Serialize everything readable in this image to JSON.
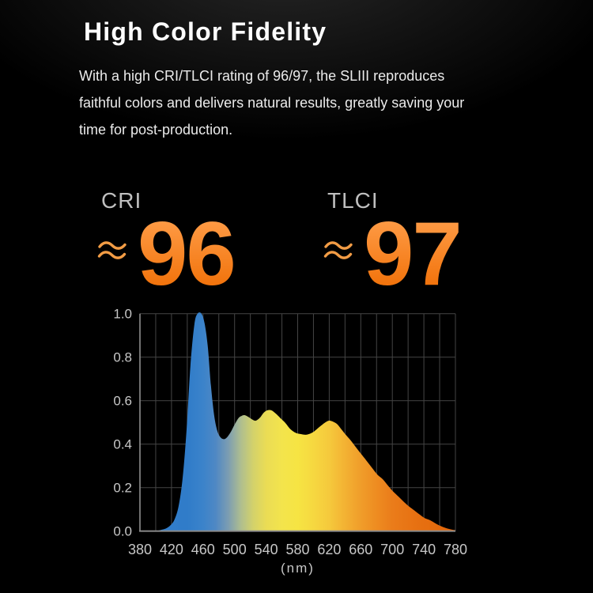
{
  "header": {
    "title": "High Color Fidelity",
    "description_lines": [
      "With a high CRI/TLCI rating of 96/97, the SLIII reproduces",
      "faithful colors and delivers natural results, greatly saving your",
      "time for post-production."
    ]
  },
  "ratings": [
    {
      "label": "CRI",
      "approx_symbol": "≈",
      "value": "96"
    },
    {
      "label": "TLCI",
      "approx_symbol": "≈",
      "value": "97"
    }
  ],
  "colors": {
    "accent_orange_top": "#FF9D48",
    "accent_orange_bottom": "#F06F06",
    "wave_orange": "#F29C45",
    "title_white": "#FFFFFF",
    "body_text": "#EBEBEB",
    "rating_label_gray": "#BFBFBF",
    "grid": "#454545",
    "axis": "#8E8E8E",
    "tick_text": "#C7C7C7",
    "background": "#000000"
  },
  "chart_data": {
    "type": "area",
    "title": "",
    "xlabel": "(nm)",
    "ylabel": "",
    "xlim": [
      380,
      780
    ],
    "ylim": [
      0,
      1
    ],
    "grid": true,
    "legend": false,
    "x_ticks": [
      380,
      420,
      460,
      500,
      540,
      580,
      620,
      660,
      700,
      740,
      780
    ],
    "y_ticks": [
      "1.0",
      "0.8",
      "0.6",
      "0.4",
      "0.2",
      "0.0"
    ],
    "x_gridlines": [
      380,
      400,
      420,
      440,
      460,
      480,
      500,
      520,
      540,
      560,
      580,
      600,
      620,
      640,
      660,
      680,
      700,
      720,
      740,
      760,
      780
    ],
    "y_gridlines": [
      0,
      0.2,
      0.4,
      0.6,
      0.8,
      1.0
    ],
    "points": [
      [
        380,
        0
      ],
      [
        398,
        0
      ],
      [
        406,
        0.005
      ],
      [
        413,
        0.012
      ],
      [
        419,
        0.028
      ],
      [
        424,
        0.055
      ],
      [
        429,
        0.115
      ],
      [
        434,
        0.24
      ],
      [
        439,
        0.46
      ],
      [
        444,
        0.76
      ],
      [
        449,
        0.95
      ],
      [
        453,
        1.0
      ],
      [
        458,
        1.0
      ],
      [
        462,
        0.955
      ],
      [
        466,
        0.85
      ],
      [
        470,
        0.67
      ],
      [
        474,
        0.535
      ],
      [
        478,
        0.462
      ],
      [
        482,
        0.432
      ],
      [
        486,
        0.423
      ],
      [
        490,
        0.43
      ],
      [
        495,
        0.455
      ],
      [
        500,
        0.49
      ],
      [
        505,
        0.52
      ],
      [
        509,
        0.53
      ],
      [
        513,
        0.533
      ],
      [
        518,
        0.524
      ],
      [
        523,
        0.512
      ],
      [
        527,
        0.508
      ],
      [
        532,
        0.521
      ],
      [
        537,
        0.545
      ],
      [
        542,
        0.556
      ],
      [
        547,
        0.555
      ],
      [
        552,
        0.541
      ],
      [
        558,
        0.52
      ],
      [
        564,
        0.499
      ],
      [
        571,
        0.468
      ],
      [
        578,
        0.451
      ],
      [
        584,
        0.446
      ],
      [
        590,
        0.443
      ],
      [
        595,
        0.447
      ],
      [
        600,
        0.456
      ],
      [
        605,
        0.471
      ],
      [
        610,
        0.486
      ],
      [
        615,
        0.5
      ],
      [
        620,
        0.508
      ],
      [
        625,
        0.503
      ],
      [
        630,
        0.492
      ],
      [
        635,
        0.47
      ],
      [
        641,
        0.443
      ],
      [
        647,
        0.418
      ],
      [
        654,
        0.385
      ],
      [
        660,
        0.357
      ],
      [
        667,
        0.325
      ],
      [
        674,
        0.292
      ],
      [
        681,
        0.26
      ],
      [
        688,
        0.238
      ],
      [
        695,
        0.207
      ],
      [
        701,
        0.182
      ],
      [
        708,
        0.158
      ],
      [
        715,
        0.133
      ],
      [
        721,
        0.114
      ],
      [
        728,
        0.095
      ],
      [
        734,
        0.078
      ],
      [
        741,
        0.06
      ],
      [
        748,
        0.05
      ],
      [
        755,
        0.035
      ],
      [
        761,
        0.024
      ],
      [
        768,
        0.014
      ],
      [
        774,
        0.008
      ],
      [
        780,
        0.004
      ]
    ],
    "gradient_stops": [
      [
        0.0,
        "#337FCB"
      ],
      [
        0.15,
        "#307CC9"
      ],
      [
        0.2,
        "#3B83CA"
      ],
      [
        0.24,
        "#4F88C4"
      ],
      [
        0.28,
        "#7C9DB2"
      ],
      [
        0.32,
        "#AFBE8F"
      ],
      [
        0.36,
        "#D4D26A"
      ],
      [
        0.4,
        "#EADC55"
      ],
      [
        0.45,
        "#F3E44C"
      ],
      [
        0.5,
        "#F6E443"
      ],
      [
        0.55,
        "#F6D840"
      ],
      [
        0.6,
        "#F5C93C"
      ],
      [
        0.65,
        "#F3B233"
      ],
      [
        0.7,
        "#F09D2A"
      ],
      [
        0.75,
        "#EE8C21"
      ],
      [
        0.8,
        "#EA7C1A"
      ],
      [
        0.875,
        "#E77112"
      ],
      [
        0.95,
        "#E46A0C"
      ],
      [
        1.0,
        "#E36409"
      ]
    ]
  }
}
